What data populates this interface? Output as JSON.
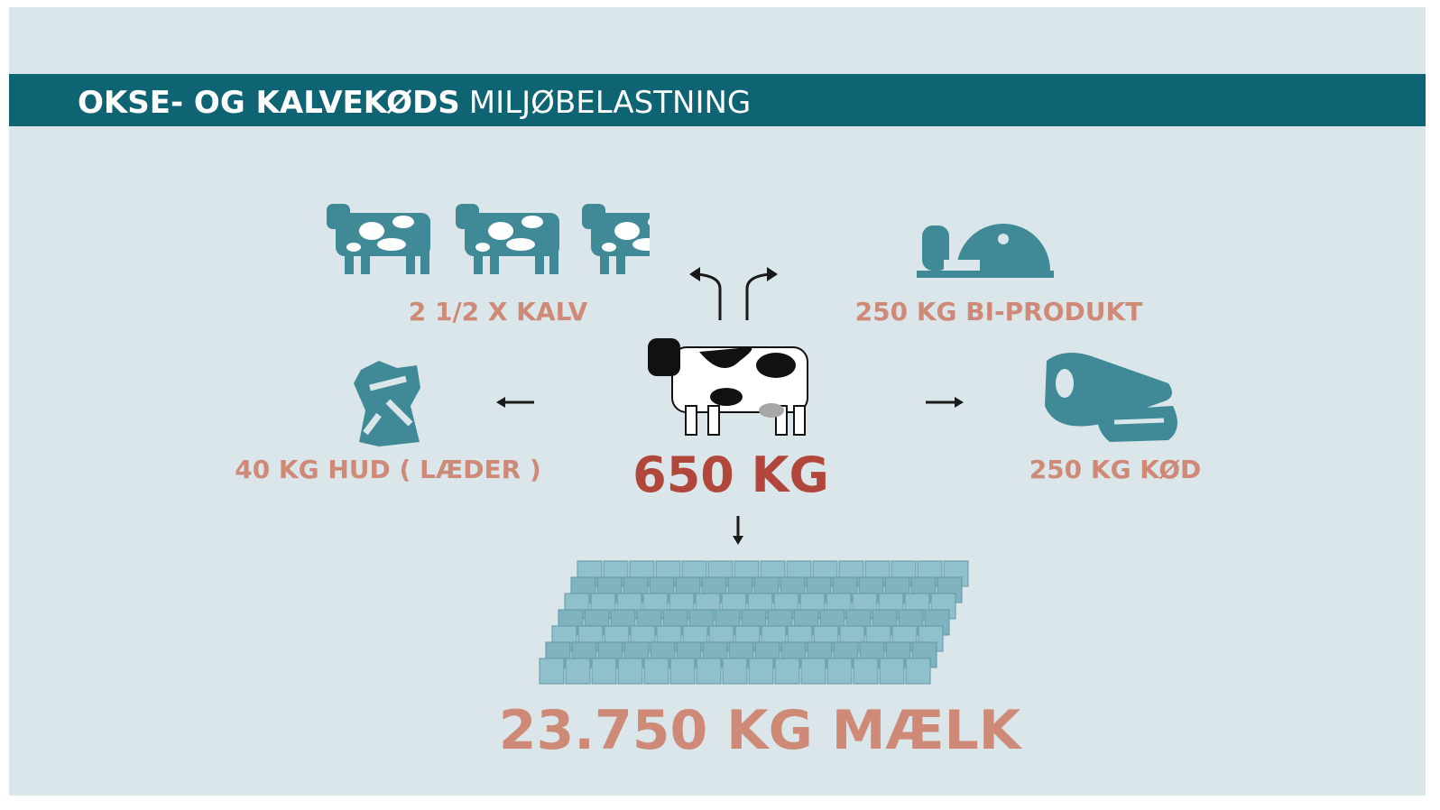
{
  "header": {
    "title_bold": "OKSE- OG KALVEKØDS",
    "title_light": "MILJØBELASTNING"
  },
  "center": {
    "label": "650 KG"
  },
  "outputs": [
    {
      "label": "2 1/2 X KALV"
    },
    {
      "label": "250 KG BI-PRODUKT"
    },
    {
      "label": "40 KG HUD ( LÆDER )"
    },
    {
      "label": "250 KG KØD"
    },
    {
      "label": "23.750 KG MÆLK"
    }
  ]
}
